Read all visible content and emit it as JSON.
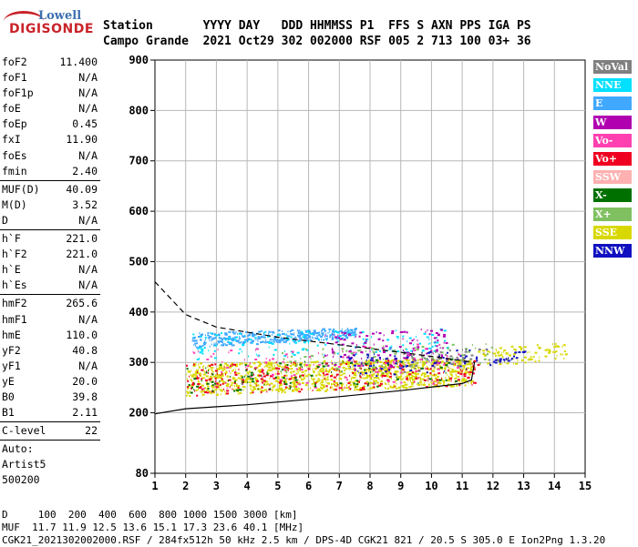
{
  "logo": {
    "brand": "Lowell",
    "product": "DIGISONDE"
  },
  "header": {
    "line1": "Station       YYYY DAY   DDD HHMMSS P1  FFS S AXN PPS IGA PS",
    "line2": "Campo Grande  2021 Oct29 302 002000 RSF 005 2 713 100 03+ 36"
  },
  "params": [
    {
      "k": "foF2",
      "v": "11.400"
    },
    {
      "k": "foF1",
      "v": "N/A"
    },
    {
      "k": "foF1p",
      "v": "N/A"
    },
    {
      "k": "foE",
      "v": "N/A"
    },
    {
      "k": "foEp",
      "v": "0.45"
    },
    {
      "k": "fxI",
      "v": "11.90"
    },
    {
      "k": "foEs",
      "v": "N/A"
    },
    {
      "k": "fmin",
      "v": "2.40",
      "sep": true
    },
    {
      "k": "MUF(D)",
      "v": "40.09"
    },
    {
      "k": "M(D)",
      "v": "3.52"
    },
    {
      "k": "D",
      "v": "N/A",
      "sep": true
    },
    {
      "k": "h`F",
      "v": "221.0"
    },
    {
      "k": "h`F2",
      "v": "221.0"
    },
    {
      "k": "h`E",
      "v": "N/A"
    },
    {
      "k": "h`Es",
      "v": "N/A",
      "sep": true
    },
    {
      "k": "hmF2",
      "v": "265.6"
    },
    {
      "k": "hmF1",
      "v": "N/A"
    },
    {
      "k": "hmE",
      "v": "110.0"
    },
    {
      "k": "yF2",
      "v": "40.8"
    },
    {
      "k": "yF1",
      "v": "N/A"
    },
    {
      "k": "yE",
      "v": "20.0"
    },
    {
      "k": "B0",
      "v": "39.8"
    },
    {
      "k": "B1",
      "v": "2.11",
      "sep": true
    },
    {
      "k": "C-level",
      "v": "22",
      "sep": true
    },
    {
      "k": "Auto:",
      "v": ""
    },
    {
      "k": "Artist5",
      "v": ""
    },
    {
      "k": "500200",
      "v": ""
    }
  ],
  "legend": [
    {
      "label": "NoVal",
      "color": "#808080"
    },
    {
      "label": "NNE",
      "color": "#00e0ff"
    },
    {
      "label": "E",
      "color": "#40a8ff"
    },
    {
      "label": "W",
      "color": "#b000b0"
    },
    {
      "label": "Vo-",
      "color": "#ff40b0"
    },
    {
      "label": "Vo+",
      "color": "#f00020"
    },
    {
      "label": "SSW",
      "color": "#ffb0b0"
    },
    {
      "label": "X-",
      "color": "#007000"
    },
    {
      "label": "X+",
      "color": "#80c060"
    },
    {
      "label": "SSE",
      "color": "#d8d800"
    },
    {
      "label": "NNW",
      "color": "#1010c0"
    }
  ],
  "footer": {
    "line1": "D     100  200  400  600  800 1000 1500 3000 [km]",
    "line2": "MUF  11.7 11.9 12.5 13.6 15.1 17.3 23.6 40.1 [MHz]",
    "line3": "CGK21_2021302002000.RSF / 284fx512h 50 kHz 2.5 km / DPS-4D CGK21 821 / 20.5 S 305.0 E Ion2Png 1.3.20"
  },
  "chart_data": {
    "type": "scatter",
    "xlim": [
      1,
      15
    ],
    "ylim": [
      80,
      900
    ],
    "xticks": [
      1,
      2,
      3,
      4,
      5,
      6,
      7,
      8,
      9,
      10,
      11,
      12,
      13,
      14,
      15
    ],
    "yticks": [
      80,
      200,
      300,
      400,
      500,
      600,
      700,
      800,
      900
    ],
    "grid": true,
    "echo_clusters": [
      {
        "color": "#d8d800",
        "xr": [
          2.0,
          11.3
        ],
        "yr": [
          235,
          300
        ],
        "n": 1100
      },
      {
        "color": "#40a8ff",
        "xr": [
          2.2,
          7.5
        ],
        "yr": [
          330,
          360
        ],
        "n": 380
      },
      {
        "color": "#00e0ff",
        "xr": [
          2.2,
          10.5
        ],
        "yr": [
          305,
          360
        ],
        "n": 150
      },
      {
        "color": "#f00020",
        "xr": [
          2.0,
          11.5
        ],
        "yr": [
          235,
          300
        ],
        "n": 260
      },
      {
        "color": "#b000b0",
        "xr": [
          6.5,
          10.5
        ],
        "yr": [
          280,
          360
        ],
        "n": 160
      },
      {
        "color": "#ff40b0",
        "xr": [
          2.0,
          11.0
        ],
        "yr": [
          240,
          330
        ],
        "n": 120
      },
      {
        "color": "#007000",
        "xr": [
          2.0,
          11.0
        ],
        "yr": [
          240,
          300
        ],
        "n": 110
      },
      {
        "color": "#80c060",
        "xr": [
          5.0,
          12.0
        ],
        "yr": [
          280,
          330
        ],
        "n": 90
      },
      {
        "color": "#1010c0",
        "xr": [
          7.0,
          12.0
        ],
        "yr": [
          270,
          320
        ],
        "n": 80
      },
      {
        "color": "#808080",
        "xr": [
          9.0,
          11.8
        ],
        "yr": [
          280,
          320
        ],
        "n": 50
      },
      {
        "color": "#d8d800",
        "xr": [
          11.5,
          14.4
        ],
        "yr": [
          290,
          330
        ],
        "n": 90
      },
      {
        "color": "#1010c0",
        "xr": [
          12.0,
          13.0
        ],
        "yr": [
          295,
          315
        ],
        "n": 25
      }
    ],
    "trace_solid": [
      [
        1,
        198
      ],
      [
        2,
        208
      ],
      [
        4,
        216
      ],
      [
        7,
        232
      ],
      [
        9,
        244
      ],
      [
        11,
        258
      ],
      [
        11.3,
        265
      ],
      [
        11.4,
        300
      ]
    ],
    "trace_dashed": [
      [
        1,
        460
      ],
      [
        2,
        395
      ],
      [
        3,
        370
      ],
      [
        5,
        350
      ],
      [
        7,
        335
      ],
      [
        9,
        320
      ],
      [
        10.5,
        308
      ],
      [
        11.4,
        300
      ]
    ]
  }
}
